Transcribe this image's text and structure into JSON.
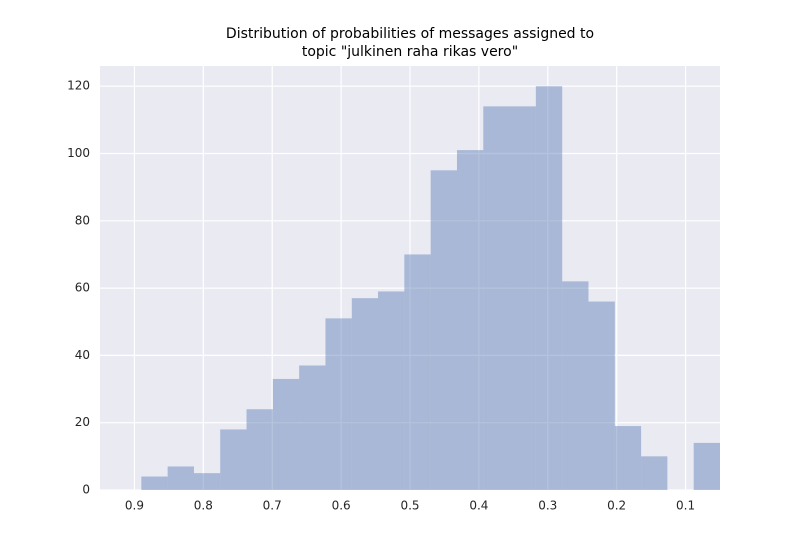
{
  "chart_data": {
    "type": "histogram",
    "title": [
      "Distribution of probabilities of messages assigned to",
      "topic \"julkinen raha rikas vero\""
    ],
    "bins": [
      0.05,
      0.0882,
      0.1264,
      0.1645,
      0.2027,
      0.2409,
      0.2791,
      0.3173,
      0.3555,
      0.3936,
      0.4318,
      0.47,
      0.5082,
      0.5464,
      0.5845,
      0.6227,
      0.6609,
      0.6991,
      0.7373,
      0.7755,
      0.8136,
      0.8518,
      0.89
    ],
    "values": [
      14,
      0,
      10,
      19,
      56,
      62,
      120,
      114,
      114,
      101,
      95,
      70,
      59,
      57,
      51,
      37,
      33,
      24,
      18,
      5,
      7,
      4
    ],
    "color": "#4c72b0",
    "xlim": [
      0.95,
      0.05
    ],
    "xticks": [
      0.9,
      0.8,
      0.7,
      0.6,
      0.5,
      0.4,
      0.3,
      0.2,
      0.1
    ],
    "ylim": [
      0,
      126
    ],
    "yticks": [
      0,
      20,
      40,
      60,
      80,
      100,
      120
    ],
    "grid": true
  }
}
